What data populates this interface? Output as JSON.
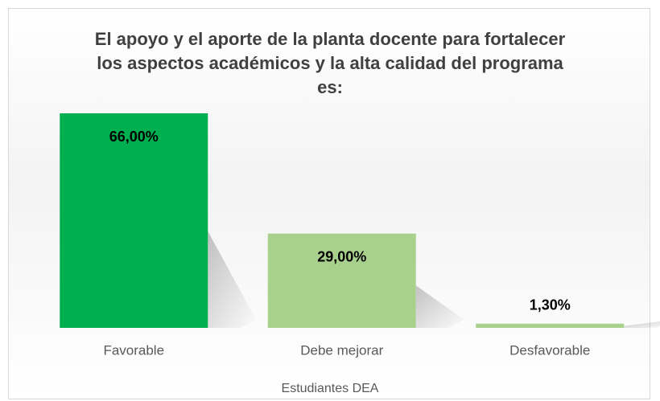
{
  "chart_data": {
    "type": "bar",
    "title": "El apoyo y el aporte de la planta docente para fortalecer los aspectos académicos y la alta calidad del programa es:",
    "categories": [
      "Favorable",
      "Debe mejorar",
      "Desfavorable"
    ],
    "values": [
      66,
      29,
      1.3
    ],
    "value_labels": [
      "66,00%",
      "29,00%",
      "1,30%"
    ],
    "colors": [
      "#00b050",
      "#a9d18e",
      "#a9d18e"
    ],
    "xlabel": "Estudiantes DEA"
  }
}
